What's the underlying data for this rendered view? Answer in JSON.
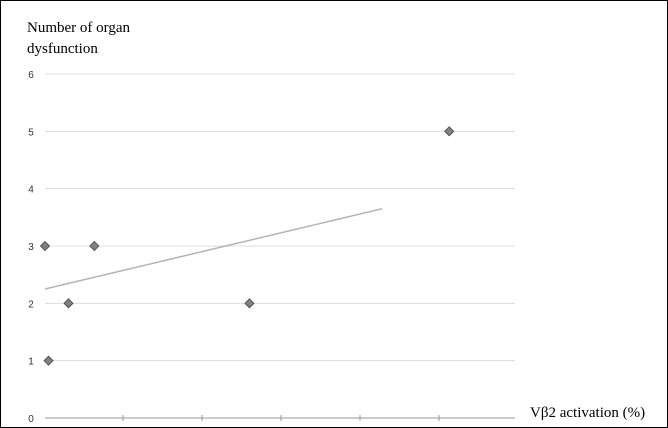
{
  "chart_data": {
    "type": "scatter",
    "title": "",
    "ylabel_lines": [
      "Number of organ",
      "dysfunction"
    ],
    "xlabel": "Vβ2 activation (%)",
    "ylim": [
      0,
      6
    ],
    "yticks": [
      "0",
      "1",
      "2",
      "3",
      "4",
      "5",
      "6"
    ],
    "grid": true,
    "x_tick_marks": 5,
    "points": [
      {
        "x": 0.0,
        "y": 3
      },
      {
        "x": 0.03,
        "y": 1
      },
      {
        "x": 0.2,
        "y": 2
      },
      {
        "x": 0.42,
        "y": 3
      },
      {
        "x": 1.74,
        "y": 2
      },
      {
        "x": 3.44,
        "y": 5
      }
    ],
    "trendline": {
      "from": {
        "x": 0.0,
        "y": 2.25
      },
      "to": {
        "x": 2.87,
        "y": 3.65
      }
    },
    "colors": {
      "marker": "#808080",
      "trendline": "#b3b3b3",
      "grid": "#dddddd"
    }
  }
}
